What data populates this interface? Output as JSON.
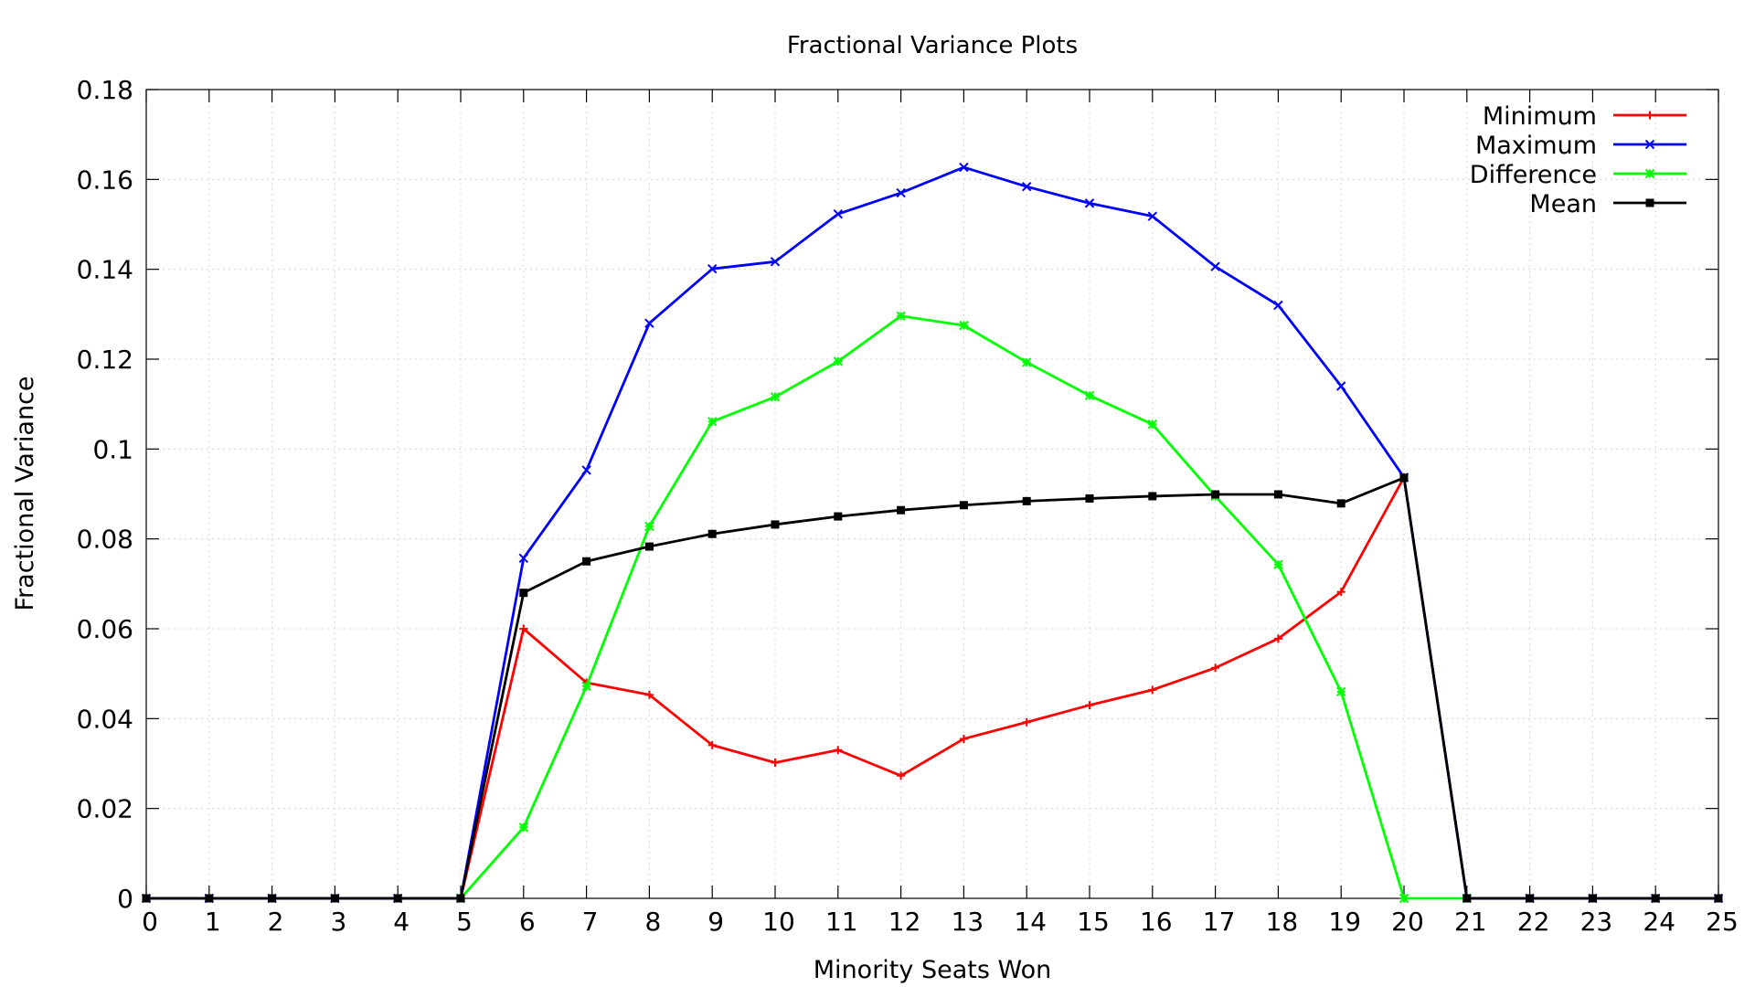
{
  "chart_data": {
    "type": "line",
    "title": "Fractional Variance Plots",
    "xlabel": "Minority Seats Won",
    "ylabel": "Fractional Variance",
    "xlim": [
      0,
      25
    ],
    "ylim": [
      0,
      0.18
    ],
    "x_ticks": [
      "0",
      "1",
      "2",
      "3",
      "4",
      "5",
      "6",
      "7",
      "8",
      "9",
      "10",
      "11",
      "12",
      "13",
      "14",
      "15",
      "16",
      "17",
      "18",
      "19",
      "20",
      "21",
      "22",
      "23",
      "24",
      "25"
    ],
    "y_ticks": [
      "0",
      "0.02",
      "0.04",
      "0.06",
      "0.08",
      "0.1",
      "0.12",
      "0.14",
      "0.16",
      "0.18"
    ],
    "grid": true,
    "legend_position": "top-right",
    "x": [
      0,
      1,
      2,
      3,
      4,
      5,
      6,
      7,
      8,
      9,
      10,
      11,
      12,
      13,
      14,
      15,
      16,
      17,
      18,
      19,
      20,
      21,
      22,
      23,
      24,
      25
    ],
    "series": [
      {
        "name": "Minimum",
        "color": "#ff0000",
        "marker": "plus",
        "x": [
          0,
          1,
          2,
          3,
          4,
          5,
          6,
          7,
          8,
          9,
          10,
          11,
          12,
          13,
          14,
          15,
          16,
          17,
          18,
          19,
          20,
          21,
          22,
          23,
          24,
          25
        ],
        "values": [
          0,
          0,
          0,
          0,
          0,
          0,
          0.06,
          0.048,
          0.0453,
          0.0341,
          0.0302,
          0.033,
          0.0273,
          0.0355,
          0.0392,
          0.043,
          0.0464,
          0.0513,
          0.0578,
          0.0682,
          0.0937,
          0,
          0,
          0,
          0,
          0
        ]
      },
      {
        "name": "Maximum",
        "color": "#0000ff",
        "marker": "x",
        "x": [
          0,
          1,
          2,
          3,
          4,
          5,
          6,
          7,
          8,
          9,
          10,
          11,
          12,
          13,
          14,
          15,
          16,
          17,
          18,
          19,
          20,
          21,
          22,
          23,
          24,
          25
        ],
        "values": [
          0,
          0,
          0,
          0,
          0,
          0,
          0.0757,
          0.0953,
          0.128,
          0.1401,
          0.1417,
          0.1523,
          0.157,
          0.1627,
          0.1584,
          0.1547,
          0.1518,
          0.1406,
          0.132,
          0.114,
          0.0937,
          0,
          0,
          0,
          0,
          0
        ]
      },
      {
        "name": "Difference",
        "color": "#00ff00",
        "marker": "star",
        "x": [
          5,
          6,
          7,
          8,
          9,
          10,
          11,
          12,
          13,
          14,
          15,
          16,
          17,
          18,
          19,
          20,
          21
        ],
        "values": [
          0,
          0.0158,
          0.0472,
          0.0828,
          0.1061,
          0.1116,
          0.1195,
          0.1296,
          0.1275,
          0.1193,
          0.1119,
          0.1055,
          0.0895,
          0.0743,
          0.046,
          0,
          0
        ]
      },
      {
        "name": "Mean",
        "color": "#000000",
        "marker": "square",
        "x": [
          0,
          1,
          2,
          3,
          4,
          5,
          6,
          7,
          8,
          9,
          10,
          11,
          12,
          13,
          14,
          15,
          16,
          17,
          18,
          19,
          20,
          21,
          22,
          23,
          24,
          25
        ],
        "values": [
          0,
          0,
          0,
          0,
          0,
          0,
          0.068,
          0.075,
          0.0783,
          0.0811,
          0.0832,
          0.085,
          0.0864,
          0.0875,
          0.0884,
          0.089,
          0.0895,
          0.0899,
          0.0899,
          0.0879,
          0.0936,
          0,
          0,
          0,
          0,
          0
        ]
      }
    ]
  }
}
